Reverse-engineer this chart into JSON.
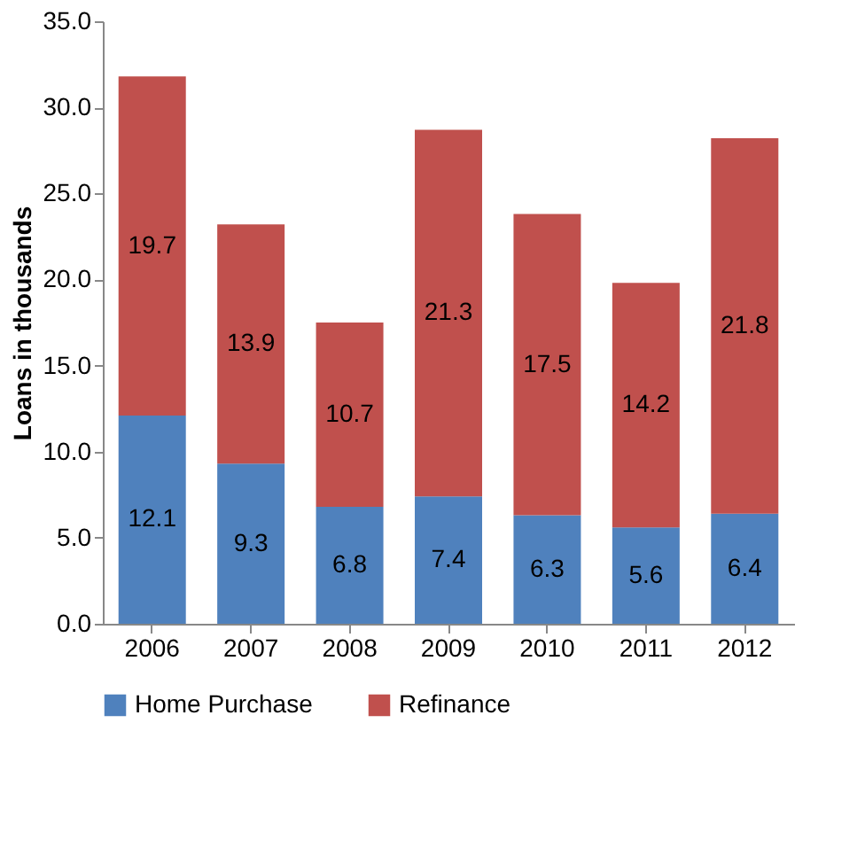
{
  "chart_data": {
    "type": "bar",
    "stacked": true,
    "ylabel": "Loans in thousands",
    "categories": [
      "2006",
      "2007",
      "2008",
      "2009",
      "2010",
      "2011",
      "2012"
    ],
    "series": [
      {
        "name": "Home Purchase",
        "color": "#4f81bd",
        "values": [
          12.1,
          9.3,
          6.8,
          7.4,
          6.3,
          5.6,
          6.4
        ]
      },
      {
        "name": "Refinance",
        "color": "#c0504d",
        "values": [
          19.7,
          13.9,
          10.7,
          21.3,
          17.5,
          14.2,
          21.8
        ]
      }
    ],
    "ylim": [
      0,
      35
    ],
    "yticks": [
      {
        "value": 0,
        "label": "0.0"
      },
      {
        "value": 5,
        "label": "5.0"
      },
      {
        "value": 10,
        "label": "10.0"
      },
      {
        "value": 15,
        "label": "15.0"
      },
      {
        "value": 20,
        "label": "20.0"
      },
      {
        "value": 25,
        "label": "25.0"
      },
      {
        "value": 30,
        "label": "30.0"
      },
      {
        "value": 35,
        "label": "35.0"
      }
    ],
    "data_labels": true,
    "grid": false,
    "legend": "bottom"
  }
}
